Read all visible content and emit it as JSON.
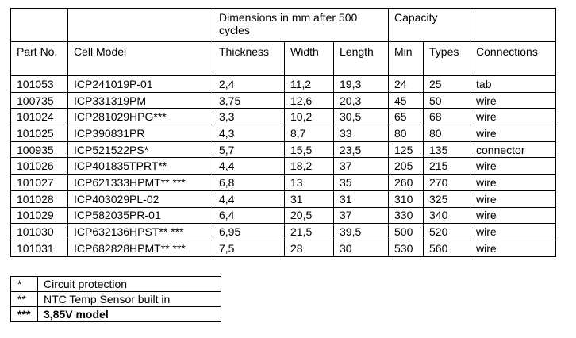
{
  "page": {
    "background_color": "#ffffff",
    "border_color": "#000000",
    "text_color": "#000000"
  },
  "spec_table": {
    "group_headers": {
      "dimensions": "Dimensions in mm after 500 cycles",
      "capacity": "Capacity"
    },
    "columns": [
      "Part No.",
      "Cell Model",
      "Thickness",
      "Width",
      "Length",
      "Min",
      "Types",
      "Connections"
    ],
    "column_keys": [
      "part-no",
      "cell-model",
      "thickness",
      "width",
      "length",
      "min",
      "types",
      "connections"
    ],
    "rows": [
      [
        "101053",
        "ICP241019P-01",
        "2,4",
        "11,2",
        "19,3",
        "24",
        "25",
        "tab"
      ],
      [
        "100735",
        "ICP331319PM",
        "3,75",
        "12,6",
        "20,3",
        "45",
        "50",
        "wire"
      ],
      [
        "101024",
        "ICP281029HPG***",
        "3,3",
        "10,2",
        "30,5",
        "65",
        "68",
        "wire"
      ],
      [
        "101025",
        "ICP390831PR",
        "4,3",
        "8,7",
        "33",
        "80",
        "80",
        "wire"
      ],
      [
        "100935",
        "ICP521522PS*",
        "5,7",
        "15,5",
        "23,5",
        "125",
        "135",
        "connector"
      ],
      [
        "101026",
        "ICP401835TPRT**",
        "4,4",
        "18,2",
        "37",
        "205",
        "215",
        "wire"
      ],
      [
        "101027",
        "ICP621333HPMT** ***",
        "6,8",
        "13",
        "35",
        "260",
        "270",
        "wire"
      ],
      [
        "101028",
        "ICP403029PL-02",
        "4,4",
        "31",
        "31",
        "310",
        "325",
        "wire"
      ],
      [
        "101029",
        "ICP582035PR-01",
        "6,4",
        "20,5",
        "37",
        "330",
        "340",
        "wire"
      ],
      [
        "101030",
        "ICP632136HPST** ***",
        "6,95",
        "21,5",
        "39,5",
        "500",
        "520",
        "wire"
      ],
      [
        "101031",
        "ICP682828HPMT** ***",
        "7,5",
        "28",
        "30",
        "530",
        "560",
        "wire"
      ]
    ]
  },
  "legend": {
    "rows": [
      {
        "symbol": "*",
        "text": "Circuit protection",
        "bold": false
      },
      {
        "symbol": "**",
        "text": "NTC Temp Sensor built in",
        "bold": false
      },
      {
        "symbol": "***",
        "text": "3,85V model",
        "bold": true
      }
    ]
  }
}
